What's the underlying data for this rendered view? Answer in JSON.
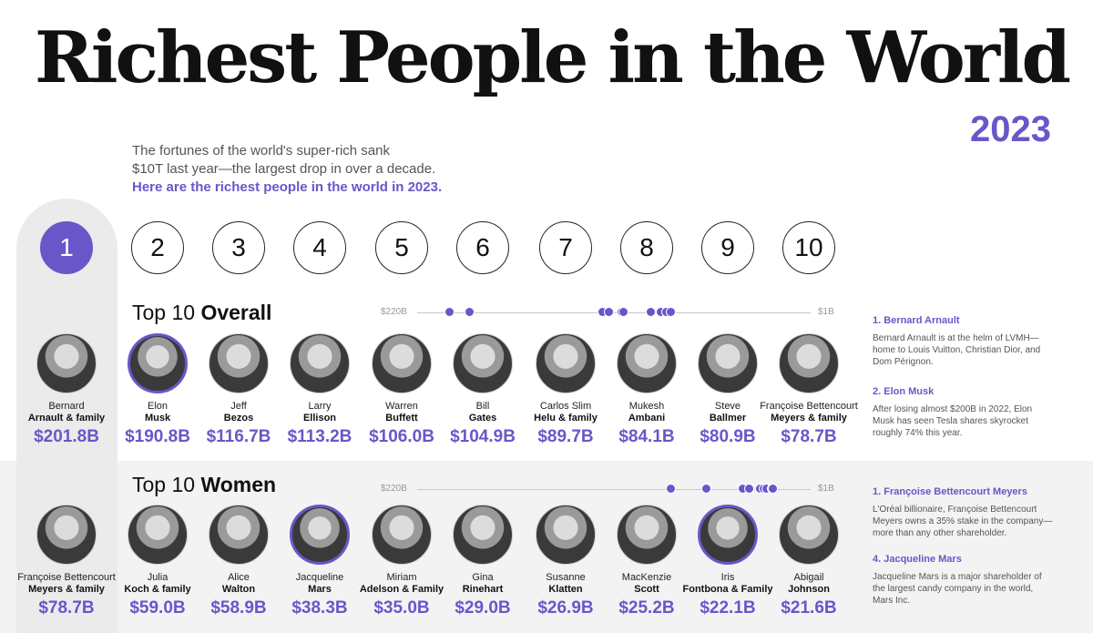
{
  "title": "Richest People in the World",
  "year": "2023",
  "intro": {
    "line1": "The fortunes of the world's super-rich sank",
    "line2": "$10T last year—the largest drop in over a decade.",
    "highlight": "Here are the richest people in the world in 2023."
  },
  "ranks": [
    "1",
    "2",
    "3",
    "4",
    "5",
    "6",
    "7",
    "8",
    "9",
    "10"
  ],
  "colors": {
    "accent": "#6a56c9",
    "band": "#f3f3f3"
  },
  "overall": {
    "title_prefix": "Top 10",
    "title_bold": "Overall",
    "scale_max_label": "$220B",
    "scale_min_label": "$1B",
    "people": [
      {
        "first": "Bernard",
        "last": "Arnault & family",
        "value": "$201.8B",
        "avatar": "portrait-bernard-arnault"
      },
      {
        "first": "Elon",
        "last": "Musk",
        "value": "$190.8B",
        "avatar": "portrait-elon-musk"
      },
      {
        "first": "Jeff",
        "last": "Bezos",
        "value": "$116.7B",
        "avatar": "portrait-jeff-bezos"
      },
      {
        "first": "Larry",
        "last": "Ellison",
        "value": "$113.2B",
        "avatar": "portrait-larry-ellison"
      },
      {
        "first": "Warren",
        "last": "Buffett",
        "value": "$106.0B",
        "avatar": "portrait-warren-buffett"
      },
      {
        "first": "Bill",
        "last": "Gates",
        "value": "$104.9B",
        "avatar": "portrait-bill-gates"
      },
      {
        "first": "Carlos Slim",
        "last": "Helu & family",
        "value": "$89.7B",
        "avatar": "portrait-carlos-slim"
      },
      {
        "first": "Mukesh",
        "last": "Ambani",
        "value": "$84.1B",
        "avatar": "portrait-mukesh-ambani"
      },
      {
        "first": "Steve",
        "last": "Ballmer",
        "value": "$80.9B",
        "avatar": "portrait-steve-ballmer"
      },
      {
        "first": "Françoise Bettencourt",
        "last": "Meyers & family",
        "value": "$78.7B",
        "avatar": "portrait-francoise-bettencourt-meyers"
      }
    ],
    "notes": [
      {
        "heading": "1. Bernard Arnault",
        "text": "Bernard Arnault is at the helm of LVMH—home to Louis Vuitton, Christian Dior, and Dom Pérignon."
      },
      {
        "heading": "2. Elon Musk",
        "text": "After losing almost $200B in 2022, Elon Musk has seen Tesla shares skyrocket roughly 74% this year."
      }
    ]
  },
  "women": {
    "title_prefix": "Top 10",
    "title_bold": "Women",
    "scale_max_label": "$220B",
    "scale_min_label": "$1B",
    "people": [
      {
        "first": "Françoise Bettencourt",
        "last": "Meyers & family",
        "value": "$78.7B",
        "avatar": "portrait-francoise-bettencourt-meyers"
      },
      {
        "first": "Julia",
        "last": "Koch & family",
        "value": "$59.0B",
        "avatar": "portrait-julia-koch"
      },
      {
        "first": "Alice",
        "last": "Walton",
        "value": "$58.9B",
        "avatar": "portrait-alice-walton"
      },
      {
        "first": "Jacqueline",
        "last": "Mars",
        "value": "$38.3B",
        "avatar": "portrait-jacqueline-mars"
      },
      {
        "first": "Miriam",
        "last": "Adelson & Family",
        "value": "$35.0B",
        "avatar": "portrait-miriam-adelson"
      },
      {
        "first": "Gina",
        "last": "Rinehart",
        "value": "$29.0B",
        "avatar": "portrait-gina-rinehart"
      },
      {
        "first": "Susanne",
        "last": "Klatten",
        "value": "$26.9B",
        "avatar": "portrait-susanne-klatten"
      },
      {
        "first": "MacKenzie",
        "last": "Scott",
        "value": "$25.2B",
        "avatar": "portrait-mackenzie-scott"
      },
      {
        "first": "Iris",
        "last": "Fontbona & Family",
        "value": "$22.1B",
        "avatar": "portrait-iris-fontbona"
      },
      {
        "first": "Abigail",
        "last": "Johnson",
        "value": "$21.6B",
        "avatar": "portrait-abigail-johnson"
      }
    ],
    "notes": [
      {
        "heading": "1. Françoise Bettencourt Meyers",
        "text": "L'Oréal billionaire, Françoise Bettencourt Meyers owns a 35% stake in the company—more than any other shareholder."
      },
      {
        "heading": "4. Jacqueline Mars",
        "text": "Jacqueline Mars is a major shareholder of the largest candy company in the world, Mars Inc."
      }
    ]
  },
  "chart_data": [
    {
      "type": "scatter",
      "title": "Top 10 Overall",
      "xlabel": "",
      "ylabel": "",
      "xlim": [
        220,
        1
      ],
      "categories": [
        "Bernard Arnault & family",
        "Elon Musk",
        "Jeff Bezos",
        "Larry Ellison",
        "Warren Buffett",
        "Bill Gates",
        "Carlos Slim Helu & family",
        "Mukesh Ambani",
        "Steve Ballmer",
        "Françoise Bettencourt Meyers & family"
      ],
      "values": [
        201.8,
        190.8,
        116.7,
        113.2,
        106.0,
        104.9,
        89.7,
        84.1,
        80.9,
        78.7
      ]
    },
    {
      "type": "scatter",
      "title": "Top 10 Women",
      "xlabel": "",
      "ylabel": "",
      "xlim": [
        220,
        1
      ],
      "categories": [
        "Françoise Bettencourt Meyers & family",
        "Julia Koch & family",
        "Alice Walton",
        "Jacqueline Mars",
        "Miriam Adelson & Family",
        "Gina Rinehart",
        "Susanne Klatten",
        "MacKenzie Scott",
        "Iris Fontbona & Family",
        "Abigail Johnson"
      ],
      "values": [
        78.7,
        59.0,
        58.9,
        38.3,
        35.0,
        29.0,
        26.9,
        25.2,
        22.1,
        21.6
      ]
    }
  ]
}
